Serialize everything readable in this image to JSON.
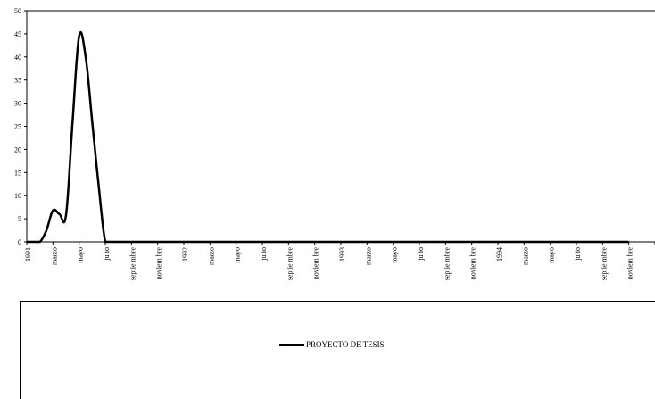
{
  "chart_data": {
    "type": "line",
    "ylim": [
      0,
      50
    ],
    "yticks": [
      0,
      5,
      10,
      15,
      20,
      25,
      30,
      35,
      40,
      45,
      50
    ],
    "grid": false,
    "legend_position": "bottom",
    "categories": [
      "1991",
      "marzo",
      "mayo",
      "julio",
      "septiembre",
      "noviembre",
      "1992",
      "marzo",
      "mayo",
      "julio",
      "septiembre",
      "noviembre",
      "1993",
      "marzo",
      "mayo",
      "julio",
      "septiembre",
      "noviembre",
      "1994",
      "marzo",
      "mayo",
      "julio",
      "septiembre",
      "noviembre"
    ],
    "category_labels": [
      "1991",
      "marzo",
      "mayo",
      "julio",
      "septie mbre",
      "noviem bre",
      "1992",
      "marzo",
      "mayo",
      "julio",
      "septie mbre",
      "noviem bre",
      "1993",
      "marzo",
      "mayo",
      "julio",
      "septie mbre",
      "noviem bre",
      "1994",
      "marzo",
      "mayo",
      "julio",
      "septie mbre",
      "noviem bre"
    ],
    "series": [
      {
        "name": "PROYECTO DE TESIS",
        "color": "#000000",
        "x": [
          0,
          0.25,
          0.5,
          0.75,
          1.0,
          1.25,
          1.5,
          1.75,
          2.0,
          2.25,
          2.5,
          2.75,
          3.0,
          3.25,
          3.5,
          4,
          5,
          6,
          7,
          8,
          9,
          10,
          11,
          12,
          13,
          14,
          15,
          16,
          17,
          18,
          19,
          20,
          21,
          22,
          23
        ],
        "values": [
          0,
          0,
          0,
          2.5,
          6.8,
          6.0,
          5.8,
          26,
          44.5,
          40,
          26,
          12,
          0,
          0,
          0,
          0,
          0,
          0,
          0,
          0,
          0,
          0,
          0,
          0,
          0,
          0,
          0,
          0,
          0,
          0,
          0,
          0,
          0,
          0,
          0
        ]
      }
    ]
  }
}
